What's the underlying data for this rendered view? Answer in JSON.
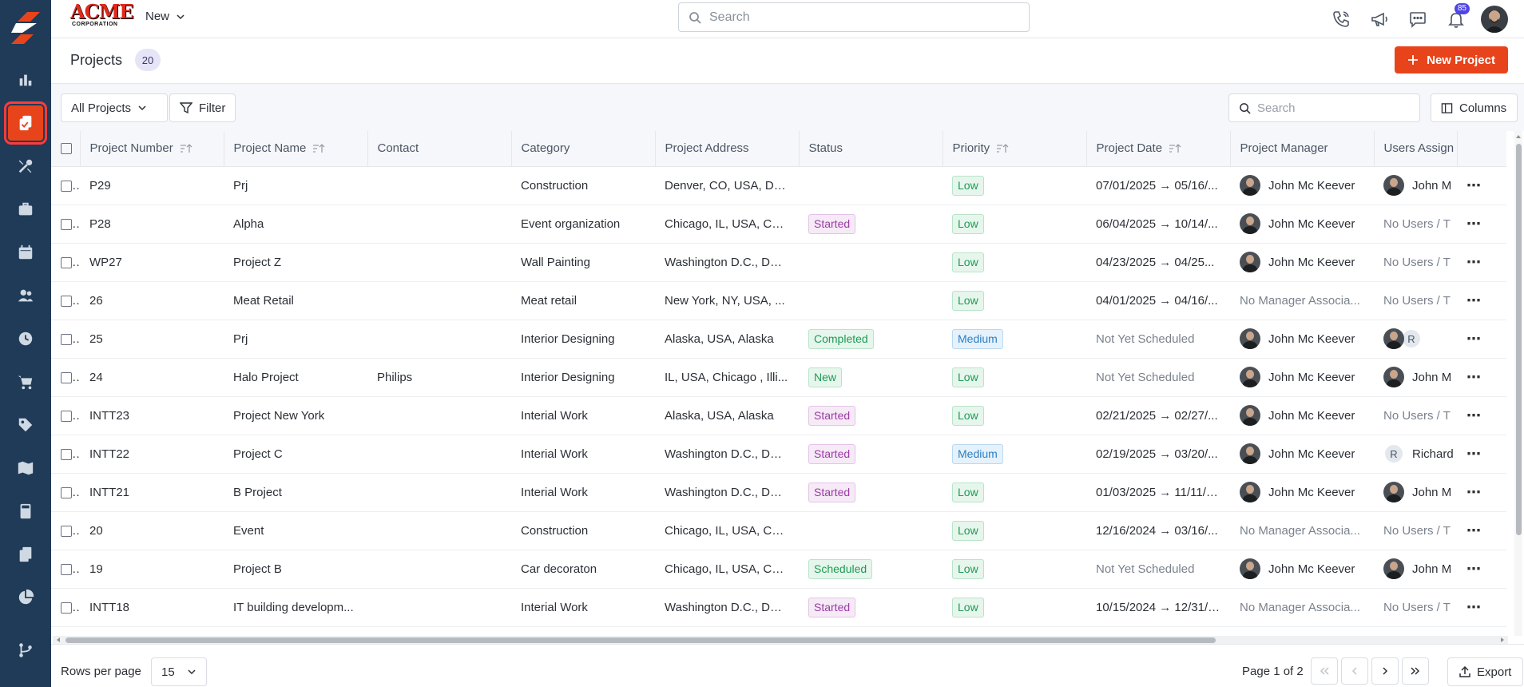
{
  "brand": {
    "name": "ACME",
    "sub": "CORPORATION"
  },
  "topbar": {
    "new_label": "New",
    "search_placeholder": "Search",
    "notification_count": "85"
  },
  "header": {
    "title": "Projects",
    "count": "20",
    "new_button": "New Project"
  },
  "filters": {
    "view_label": "All Projects",
    "filter_label": "Filter",
    "search_placeholder": "Search",
    "columns_label": "Columns"
  },
  "columns": [
    "Project Number",
    "Project Name",
    "Contact",
    "Category",
    "Project Address",
    "Status",
    "Priority",
    "Project Date",
    "Project Manager",
    "Users Assign"
  ],
  "rows": [
    {
      "number": "P29",
      "name": "Prj",
      "contact": "",
      "category": "Construction",
      "address": "Denver, CO, USA, De...",
      "status": "",
      "priority": "Low",
      "date": "07/01/2025 → 05/16/...",
      "manager": "John Mc Keever",
      "users": "John M",
      "users_avatar": "photo"
    },
    {
      "number": "P28",
      "name": "Alpha",
      "contact": "",
      "category": "Event organization",
      "address": "Chicago, IL, USA, Chi...",
      "status": "Started",
      "priority": "Low",
      "date": "06/04/2025 → 10/14/...",
      "manager": "John Mc Keever",
      "users": "No Users / T",
      "users_avatar": ""
    },
    {
      "number": "WP27",
      "name": "Project Z",
      "contact": "",
      "category": "Wall Painting",
      "address": "Washington D.C., DC,...",
      "status": "",
      "priority": "Low",
      "date": "04/23/2025 → 04/25...",
      "manager": "John Mc Keever",
      "users": "No Users / T",
      "users_avatar": ""
    },
    {
      "number": "26",
      "name": "Meat Retail",
      "contact": "",
      "category": "Meat retail",
      "address": "New York, NY, USA, ...",
      "status": "",
      "priority": "Low",
      "date": "04/01/2025 → 04/16/...",
      "manager": "No Manager Associa...",
      "users": "No Users / T",
      "users_avatar": ""
    },
    {
      "number": "25",
      "name": "Prj",
      "contact": "",
      "category": "Interior Designing",
      "address": "Alaska, USA, Alaska",
      "status": "Completed",
      "priority": "Medium",
      "date": "Not Yet Scheduled",
      "manager": "John Mc Keever",
      "users": "",
      "users_avatar": "photo+R"
    },
    {
      "number": "24",
      "name": "Halo Project",
      "contact": "Philips",
      "category": "Interior Designing",
      "address": "IL, USA, Chicago , Illi...",
      "status": "New",
      "priority": "Low",
      "date": "Not Yet Scheduled",
      "manager": "John Mc Keever",
      "users": "John M",
      "users_avatar": "photo"
    },
    {
      "number": "INTT23",
      "name": "Project New York",
      "contact": "",
      "category": "Interial Work",
      "address": "Alaska, USA, Alaska",
      "status": "Started",
      "priority": "Low",
      "date": "02/21/2025 → 02/27/...",
      "manager": "John Mc Keever",
      "users": "No Users / T",
      "users_avatar": ""
    },
    {
      "number": "INTT22",
      "name": "Project C",
      "contact": "",
      "category": "Interial Work",
      "address": "Washington D.C., DC,...",
      "status": "Started",
      "priority": "Medium",
      "date": "02/19/2025 → 03/20/...",
      "manager": "John Mc Keever",
      "users": "Richard",
      "users_avatar": "R"
    },
    {
      "number": "INTT21",
      "name": "B Project",
      "contact": "",
      "category": "Interial Work",
      "address": "Washington D.C., DC,...",
      "status": "Started",
      "priority": "Low",
      "date": "01/03/2025 → 11/11/2...",
      "manager": "John Mc Keever",
      "users": "John M",
      "users_avatar": "photo"
    },
    {
      "number": "20",
      "name": "Event",
      "contact": "",
      "category": "Construction",
      "address": "Chicago, IL, USA, Chi...",
      "status": "",
      "priority": "Low",
      "date": "12/16/2024 → 03/16/...",
      "manager": "No Manager Associa...",
      "users": "No Users / T",
      "users_avatar": ""
    },
    {
      "number": "19",
      "name": "Project B",
      "contact": "",
      "category": "Car decoraton",
      "address": "Chicago, IL, USA, Chi...",
      "status": "Scheduled",
      "priority": "Low",
      "date": "Not Yet Scheduled",
      "manager": "John Mc Keever",
      "users": "John M",
      "users_avatar": "photo"
    },
    {
      "number": "INTT18",
      "name": "IT building developm...",
      "contact": "",
      "category": "Interial Work",
      "address": "Washington D.C., DC,...",
      "status": "Started",
      "priority": "Low",
      "date": "10/15/2024 → 12/31/2...",
      "manager": "No Manager Associa...",
      "users": "No Users / T",
      "users_avatar": ""
    }
  ],
  "footer": {
    "rows_per_page_label": "Rows per page",
    "rows_per_page": "15",
    "page_info": "Page 1 of 2",
    "export_label": "Export"
  },
  "colors": {
    "accent": "#e8441c",
    "sidebar": "#1f3b57"
  }
}
